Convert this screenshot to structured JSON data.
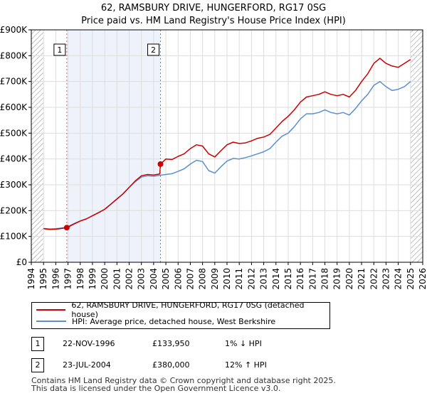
{
  "title_line1": "62, RAMSBURY DRIVE, HUNGERFORD, RG17 0SG",
  "title_line2": "Price paid vs. HM Land Registry's House Price Index (HPI)",
  "colors": {
    "property": "#cc0000",
    "hpi": "#5b8fce",
    "highlight": "#eef2fb",
    "hatch": "#999999",
    "marker_line": "#e06060"
  },
  "chart_data": {
    "type": "line",
    "xlim": [
      1994,
      2026
    ],
    "ylim": [
      0,
      900000
    ],
    "x_ticks": [
      "1994",
      "1995",
      "1996",
      "1997",
      "1998",
      "1999",
      "2000",
      "2001",
      "2002",
      "2003",
      "2004",
      "2005",
      "2006",
      "2007",
      "2008",
      "2009",
      "2010",
      "2011",
      "2012",
      "2013",
      "2014",
      "2015",
      "2016",
      "2017",
      "2018",
      "2019",
      "2020",
      "2021",
      "2022",
      "2023",
      "2024",
      "2025",
      "2026"
    ],
    "y_ticks": [
      {
        "value": 0,
        "label": "£0"
      },
      {
        "value": 100000,
        "label": "£100K"
      },
      {
        "value": 200000,
        "label": "£200K"
      },
      {
        "value": 300000,
        "label": "£300K"
      },
      {
        "value": 400000,
        "label": "£400K"
      },
      {
        "value": 500000,
        "label": "£500K"
      },
      {
        "value": 600000,
        "label": "£600K"
      },
      {
        "value": 700000,
        "label": "£700K"
      },
      {
        "value": 800000,
        "label": "£800K"
      },
      {
        "value": 900000,
        "label": "£900K"
      }
    ],
    "grid": true,
    "highlight_range": [
      1996.9,
      2004.56
    ],
    "data_end": 2025.0,
    "series": [
      {
        "name": "62, RAMSBURY DRIVE, HUNGERFORD, RG17 0SG (detached house)",
        "color": "#cc0000",
        "points": [
          [
            1995.0,
            130000
          ],
          [
            1995.5,
            127000
          ],
          [
            1996.0,
            128000
          ],
          [
            1996.5,
            131000
          ],
          [
            1996.9,
            133950
          ],
          [
            1997.5,
            148000
          ],
          [
            1998.0,
            160000
          ],
          [
            1998.5,
            168000
          ],
          [
            1999.0,
            180000
          ],
          [
            1999.5,
            192000
          ],
          [
            2000.0,
            205000
          ],
          [
            2000.5,
            225000
          ],
          [
            2001.0,
            245000
          ],
          [
            2001.5,
            265000
          ],
          [
            2002.0,
            290000
          ],
          [
            2002.5,
            315000
          ],
          [
            2003.0,
            335000
          ],
          [
            2003.5,
            340000
          ],
          [
            2004.0,
            338000
          ],
          [
            2004.5,
            342000
          ],
          [
            2004.56,
            380000
          ],
          [
            2005.0,
            400000
          ],
          [
            2005.5,
            398000
          ],
          [
            2006.0,
            410000
          ],
          [
            2006.5,
            420000
          ],
          [
            2007.0,
            440000
          ],
          [
            2007.5,
            455000
          ],
          [
            2008.0,
            450000
          ],
          [
            2008.5,
            420000
          ],
          [
            2009.0,
            408000
          ],
          [
            2009.5,
            432000
          ],
          [
            2010.0,
            455000
          ],
          [
            2010.5,
            465000
          ],
          [
            2011.0,
            460000
          ],
          [
            2011.5,
            462000
          ],
          [
            2012.0,
            470000
          ],
          [
            2012.5,
            480000
          ],
          [
            2013.0,
            485000
          ],
          [
            2013.5,
            495000
          ],
          [
            2014.0,
            520000
          ],
          [
            2014.5,
            545000
          ],
          [
            2015.0,
            565000
          ],
          [
            2015.5,
            590000
          ],
          [
            2016.0,
            620000
          ],
          [
            2016.5,
            640000
          ],
          [
            2017.0,
            645000
          ],
          [
            2017.5,
            650000
          ],
          [
            2018.0,
            660000
          ],
          [
            2018.5,
            650000
          ],
          [
            2019.0,
            645000
          ],
          [
            2019.5,
            650000
          ],
          [
            2020.0,
            640000
          ],
          [
            2020.5,
            665000
          ],
          [
            2021.0,
            700000
          ],
          [
            2021.5,
            730000
          ],
          [
            2022.0,
            770000
          ],
          [
            2022.5,
            790000
          ],
          [
            2023.0,
            770000
          ],
          [
            2023.5,
            760000
          ],
          [
            2024.0,
            755000
          ],
          [
            2024.5,
            770000
          ],
          [
            2025.0,
            785000
          ]
        ]
      },
      {
        "name": "HPI: Average price, detached house, West Berkshire",
        "color": "#5b8fce",
        "points": [
          [
            1995.0,
            131000
          ],
          [
            1995.5,
            129000
          ],
          [
            1996.0,
            130000
          ],
          [
            1996.5,
            133000
          ],
          [
            1996.9,
            136000
          ],
          [
            1997.5,
            150000
          ],
          [
            1998.0,
            160000
          ],
          [
            1998.5,
            168000
          ],
          [
            1999.0,
            180000
          ],
          [
            1999.5,
            192000
          ],
          [
            2000.0,
            205000
          ],
          [
            2000.5,
            225000
          ],
          [
            2001.0,
            245000
          ],
          [
            2001.5,
            265000
          ],
          [
            2002.0,
            290000
          ],
          [
            2002.5,
            312000
          ],
          [
            2003.0,
            330000
          ],
          [
            2003.5,
            335000
          ],
          [
            2004.0,
            333000
          ],
          [
            2004.5,
            337000
          ],
          [
            2005.0,
            340000
          ],
          [
            2005.5,
            343000
          ],
          [
            2006.0,
            352000
          ],
          [
            2006.5,
            362000
          ],
          [
            2007.0,
            380000
          ],
          [
            2007.5,
            395000
          ],
          [
            2008.0,
            390000
          ],
          [
            2008.5,
            355000
          ],
          [
            2009.0,
            345000
          ],
          [
            2009.5,
            370000
          ],
          [
            2010.0,
            392000
          ],
          [
            2010.5,
            402000
          ],
          [
            2011.0,
            400000
          ],
          [
            2011.5,
            405000
          ],
          [
            2012.0,
            412000
          ],
          [
            2012.5,
            420000
          ],
          [
            2013.0,
            428000
          ],
          [
            2013.5,
            440000
          ],
          [
            2014.0,
            465000
          ],
          [
            2014.5,
            488000
          ],
          [
            2015.0,
            500000
          ],
          [
            2015.5,
            525000
          ],
          [
            2016.0,
            555000
          ],
          [
            2016.5,
            575000
          ],
          [
            2017.0,
            575000
          ],
          [
            2017.5,
            580000
          ],
          [
            2018.0,
            590000
          ],
          [
            2018.5,
            580000
          ],
          [
            2019.0,
            575000
          ],
          [
            2019.5,
            580000
          ],
          [
            2020.0,
            570000
          ],
          [
            2020.5,
            595000
          ],
          [
            2021.0,
            625000
          ],
          [
            2021.5,
            650000
          ],
          [
            2022.0,
            685000
          ],
          [
            2022.5,
            700000
          ],
          [
            2023.0,
            680000
          ],
          [
            2023.5,
            665000
          ],
          [
            2024.0,
            670000
          ],
          [
            2024.5,
            680000
          ],
          [
            2025.0,
            700000
          ]
        ]
      }
    ],
    "transactions": [
      {
        "label": "1",
        "x": 1996.9,
        "price": 133950
      },
      {
        "label": "2",
        "x": 2004.56,
        "price": 380000
      }
    ]
  },
  "legend": {
    "property_label": "62, RAMSBURY DRIVE, HUNGERFORD, RG17 0SG (detached house)",
    "hpi_label": "HPI: Average price, detached house, West Berkshire"
  },
  "transactions_table": [
    {
      "label": "1",
      "date": "22-NOV-1996",
      "price": "£133,950",
      "relation": "1% ↓ HPI"
    },
    {
      "label": "2",
      "date": "23-JUL-2004",
      "price": "£380,000",
      "relation": "12% ↑ HPI"
    }
  ],
  "footer": {
    "line1": "Contains HM Land Registry data © Crown copyright and database right 2025.",
    "line2": "This data is licensed under the Open Government Licence v3.0."
  }
}
